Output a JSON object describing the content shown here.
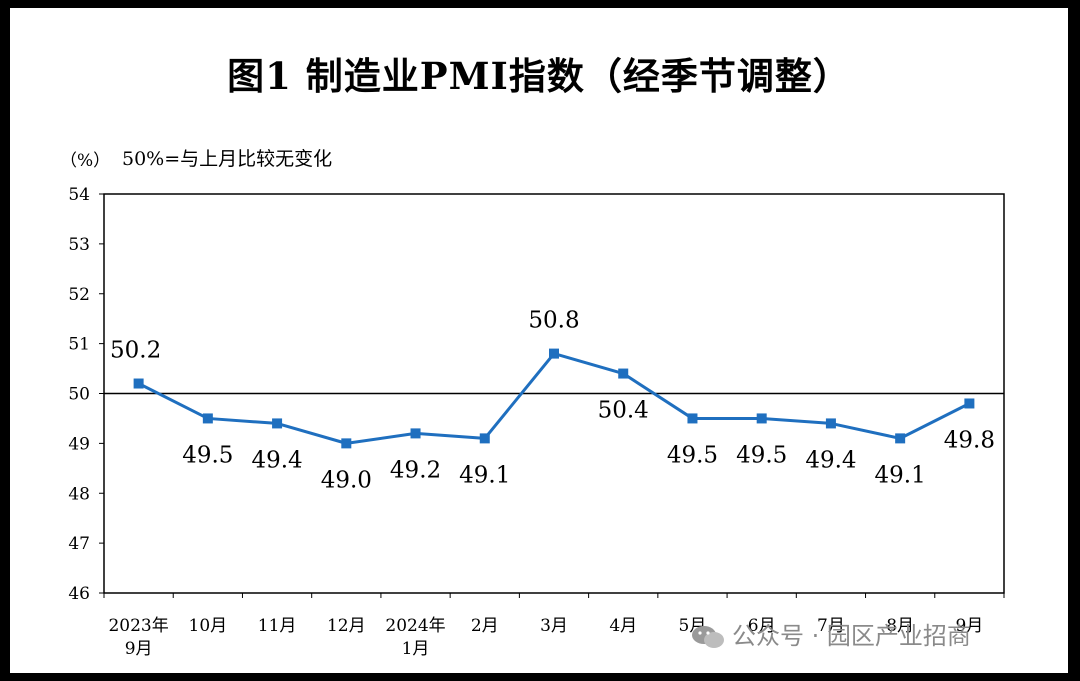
{
  "title": "图1  制造业PMI指数（经季节调整）",
  "unit": "（%）",
  "note": "50%=与上月比较无变化",
  "watermark": "公众号 · 园区产业招商",
  "colors": {
    "line": "#1f6fbf",
    "axis": "#000000"
  },
  "chart_data": {
    "type": "line",
    "title": "图1  制造业PMI指数（经季节调整）",
    "ylabel": "（%）",
    "ylim": [
      46,
      54
    ],
    "yticks": [
      46,
      47,
      48,
      49,
      50,
      51,
      52,
      53,
      54
    ],
    "reference_line": 50,
    "grid": false,
    "categories": [
      [
        "2023年",
        "9月"
      ],
      [
        "10月"
      ],
      [
        "11月"
      ],
      [
        "12月"
      ],
      [
        "2024年",
        "1月"
      ],
      [
        "2月"
      ],
      [
        "3月"
      ],
      [
        "4月"
      ],
      [
        "5月"
      ],
      [
        "6月"
      ],
      [
        "7月"
      ],
      [
        "8月"
      ],
      [
        "9月"
      ]
    ],
    "values": [
      50.2,
      49.5,
      49.4,
      49.0,
      49.2,
      49.1,
      50.8,
      50.4,
      49.5,
      49.5,
      49.4,
      49.1,
      49.8
    ],
    "labels": [
      "50.2",
      "49.5",
      "49.4",
      "49.0",
      "49.2",
      "49.1",
      "50.8",
      "50.4",
      "49.5",
      "49.5",
      "49.4",
      "49.1",
      "49.8"
    ]
  }
}
